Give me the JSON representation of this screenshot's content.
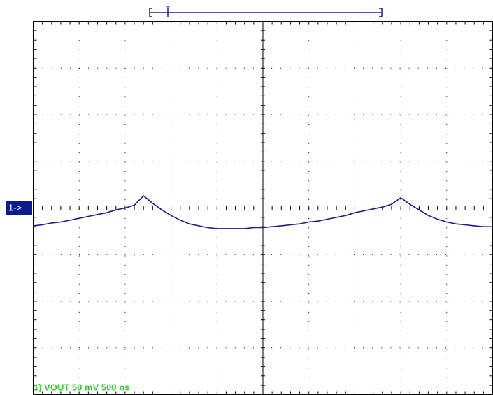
{
  "chart_data": {
    "type": "line",
    "channel_marker": "1->",
    "trigger_label": "T",
    "channel_label": "1) VOUT 50 mV 500 ns",
    "color": "#1c1c8a",
    "x": [
      0,
      100,
      200,
      300,
      400,
      500,
      600,
      700,
      800,
      900,
      1000,
      1100,
      1200,
      1300,
      1400,
      1500,
      1600,
      1700,
      1800,
      1900,
      2000,
      2100,
      2200,
      2300,
      2400,
      2500,
      2600,
      2700,
      2800,
      2900,
      3000,
      3100,
      3200,
      3300,
      3400,
      3500,
      3600,
      3700,
      3800,
      3900,
      4000,
      4100,
      4200,
      4300,
      4400,
      4500,
      4600,
      4700,
      4800,
      4900,
      5000
    ],
    "values": [
      -19,
      -18,
      -16,
      -15,
      -13,
      -11,
      -9,
      -7,
      -5,
      -2,
      0,
      3,
      13,
      5,
      -2,
      -8,
      -13,
      -17,
      -19,
      -21,
      -22,
      -22,
      -22,
      -22,
      -21,
      -21,
      -20,
      -19,
      -18,
      -17,
      -15,
      -14,
      -12,
      -10,
      -8,
      -5,
      -3,
      -1,
      1,
      4,
      11,
      4,
      -2,
      -8,
      -12,
      -15,
      -17,
      -18,
      -19,
      -20,
      -20
    ],
    "xlim": [
      0,
      5000
    ],
    "ylim": [
      -200,
      200
    ],
    "xticks": [
      0,
      500,
      1000,
      1500,
      2000,
      2500,
      3000,
      3500,
      4000,
      4500,
      5000
    ],
    "yticks": [
      -200,
      -150,
      -100,
      -50,
      0,
      50,
      100,
      150,
      200
    ],
    "grid": true
  }
}
